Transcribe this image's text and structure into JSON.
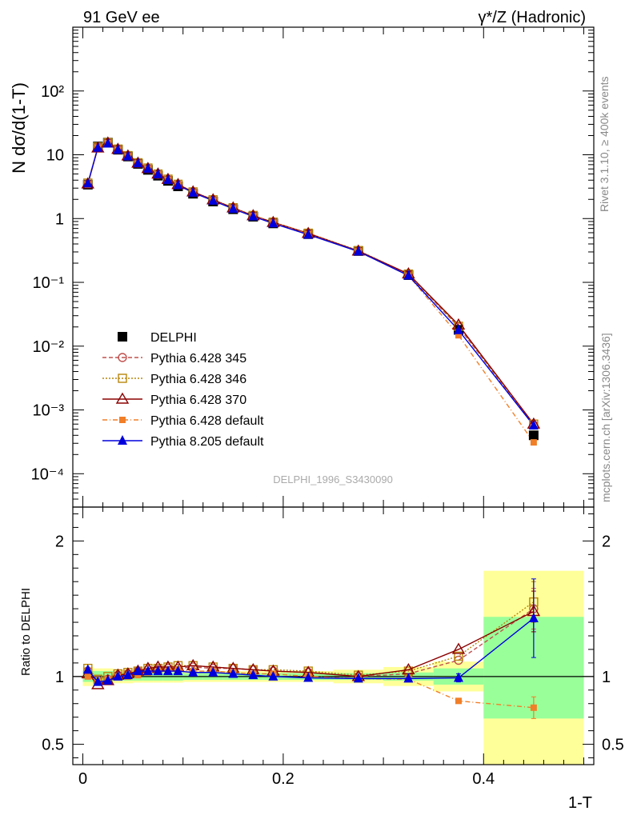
{
  "header": {
    "left_label": "91 GeV ee",
    "right_label": "γ*/Z (Hadronic)"
  },
  "side_labels": {
    "rivet": "Rivet 3.1.10, ≥ 400k events",
    "mcplots": "mcplots.cern.ch [arXiv:1306.3436]"
  },
  "analysis_label": "DELPHI_1996_S3430090",
  "chart_data": [
    {
      "type": "line",
      "panel": "main",
      "ylabel": "N dσ/d(1-T)",
      "xlabel": "1-T",
      "yscale": "log",
      "xlim": [
        -0.01,
        0.51
      ],
      "ylim": [
        3e-05,
        1000
      ],
      "y_tick_labels": [
        "10⁻⁴",
        "10⁻³",
        "10⁻²",
        "10⁻¹",
        "1",
        "10",
        "10²"
      ],
      "y_tick_values": [
        0.0001,
        0.001,
        0.01,
        0.1,
        1,
        10,
        100
      ],
      "x": [
        0.005,
        0.015,
        0.025,
        0.035,
        0.045,
        0.055,
        0.065,
        0.075,
        0.085,
        0.095,
        0.11,
        0.13,
        0.15,
        0.17,
        0.19,
        0.225,
        0.275,
        0.325,
        0.375,
        0.45
      ],
      "series": [
        {
          "name": "DELPHI",
          "marker": "square-filled",
          "color": "#000000",
          "dash": "",
          "values": [
            3.4,
            13.5,
            15.5,
            12.0,
            9.4,
            7.2,
            5.8,
            4.7,
            3.9,
            3.2,
            2.45,
            1.85,
            1.4,
            1.07,
            0.84,
            0.57,
            0.31,
            0.13,
            0.018,
            0.0004
          ]
        },
        {
          "name": "Pythia 6.428 345",
          "marker": "circle-open",
          "color": "#c0504d",
          "dash": "5,3",
          "values": [
            3.5,
            13.2,
            15.4,
            12.2,
            9.6,
            7.4,
            6.1,
            4.95,
            4.1,
            3.4,
            2.6,
            1.95,
            1.47,
            1.11,
            0.87,
            0.585,
            0.31,
            0.133,
            0.02,
            0.00058
          ]
        },
        {
          "name": "Pythia 6.428 346",
          "marker": "square-open",
          "color": "#b8860b",
          "dash": "2,2",
          "values": [
            3.6,
            13.3,
            15.5,
            12.3,
            9.7,
            7.5,
            6.2,
            5.0,
            4.15,
            3.45,
            2.62,
            1.97,
            1.48,
            1.12,
            0.88,
            0.59,
            0.315,
            0.135,
            0.0205,
            0.0006
          ]
        },
        {
          "name": "Pythia 6.428 370",
          "marker": "triangle-open",
          "color": "#8b0000",
          "dash": "",
          "values": [
            3.5,
            12.8,
            15.3,
            12.2,
            9.6,
            7.4,
            6.1,
            5.0,
            4.12,
            3.42,
            2.62,
            1.97,
            1.47,
            1.11,
            0.87,
            0.585,
            0.31,
            0.136,
            0.0215,
            0.0006
          ]
        },
        {
          "name": "Pythia 6.428 default",
          "marker": "square-filled-small",
          "color": "#f07f28",
          "dash": "6,3,1,3",
          "values": [
            3.4,
            13.0,
            15.2,
            12.0,
            9.4,
            7.3,
            6.0,
            4.9,
            4.05,
            3.35,
            2.55,
            1.92,
            1.44,
            1.09,
            0.86,
            0.57,
            0.305,
            0.128,
            0.0148,
            0.00031
          ]
        },
        {
          "name": "Pythia 8.205 default",
          "marker": "triangle-filled",
          "color": "#0000dd",
          "dash": "",
          "values": [
            3.55,
            12.9,
            15.0,
            12.0,
            9.45,
            7.35,
            6.05,
            4.95,
            4.05,
            3.35,
            2.55,
            1.91,
            1.42,
            1.08,
            0.84,
            0.56,
            0.305,
            0.128,
            0.0178,
            0.00057
          ]
        }
      ]
    },
    {
      "type": "line",
      "panel": "ratio",
      "ylabel": "Ratio to DELPHI",
      "xlabel": "1-T",
      "ylim": [
        0.35,
        2.25
      ],
      "y_tick_labels": [
        "0.5",
        "1",
        "2"
      ],
      "y_tick_values": [
        0.5,
        1,
        2
      ],
      "x_tick_labels": [
        "0",
        "0.2",
        "0.4"
      ],
      "x_tick_values": [
        0,
        0.2,
        0.4
      ],
      "x": [
        0.005,
        0.015,
        0.025,
        0.035,
        0.045,
        0.055,
        0.065,
        0.075,
        0.085,
        0.095,
        0.11,
        0.13,
        0.15,
        0.17,
        0.19,
        0.225,
        0.275,
        0.325,
        0.375,
        0.45
      ],
      "bands": {
        "edges": [
          0.0,
          0.01,
          0.02,
          0.03,
          0.04,
          0.05,
          0.06,
          0.07,
          0.08,
          0.09,
          0.1,
          0.12,
          0.14,
          0.16,
          0.18,
          0.2,
          0.25,
          0.3,
          0.35,
          0.4,
          0.5
        ],
        "green": [
          [
            0.96,
            1.04
          ],
          [
            0.96,
            1.04
          ],
          [
            0.96,
            1.04
          ],
          [
            0.97,
            1.03
          ],
          [
            0.97,
            1.03
          ],
          [
            0.97,
            1.03
          ],
          [
            0.97,
            1.03
          ],
          [
            0.97,
            1.03
          ],
          [
            0.97,
            1.03
          ],
          [
            0.97,
            1.03
          ],
          [
            0.975,
            1.025
          ],
          [
            0.975,
            1.025
          ],
          [
            0.975,
            1.025
          ],
          [
            0.975,
            1.025
          ],
          [
            0.975,
            1.025
          ],
          [
            0.975,
            1.025
          ],
          [
            0.975,
            1.025
          ],
          [
            0.97,
            1.03
          ],
          [
            0.94,
            1.06
          ],
          [
            0.69,
            1.44
          ]
        ],
        "yellow": [
          [
            0.93,
            1.07
          ],
          [
            0.94,
            1.06
          ],
          [
            0.94,
            1.06
          ],
          [
            0.95,
            1.05
          ],
          [
            0.95,
            1.05
          ],
          [
            0.955,
            1.045
          ],
          [
            0.955,
            1.045
          ],
          [
            0.955,
            1.045
          ],
          [
            0.955,
            1.045
          ],
          [
            0.955,
            1.045
          ],
          [
            0.96,
            1.04
          ],
          [
            0.96,
            1.04
          ],
          [
            0.96,
            1.04
          ],
          [
            0.96,
            1.04
          ],
          [
            0.96,
            1.04
          ],
          [
            0.96,
            1.04
          ],
          [
            0.95,
            1.05
          ],
          [
            0.93,
            1.07
          ],
          [
            0.89,
            1.11
          ],
          [
            0.35,
            1.78
          ]
        ]
      },
      "series": [
        {
          "name": "Pythia 6.428 345",
          "marker": "circle-open",
          "color": "#c0504d",
          "dash": "5,3",
          "values": [
            1.04,
            0.97,
            0.98,
            1.01,
            1.02,
            1.04,
            1.05,
            1.05,
            1.06,
            1.06,
            1.07,
            1.06,
            1.06,
            1.05,
            1.04,
            1.03,
            1.0,
            1.02,
            1.12,
            1.5
          ],
          "err": [
            0,
            0,
            0,
            0,
            0,
            0,
            0,
            0,
            0,
            0,
            0,
            0,
            0,
            0,
            0,
            0,
            0,
            0,
            0,
            0.15
          ]
        },
        {
          "name": "Pythia 6.428 346",
          "marker": "square-open",
          "color": "#b8860b",
          "dash": "2,2",
          "values": [
            1.06,
            0.98,
            1.0,
            1.02,
            1.03,
            1.04,
            1.06,
            1.06,
            1.07,
            1.08,
            1.08,
            1.07,
            1.06,
            1.05,
            1.05,
            1.04,
            1.01,
            1.04,
            1.15,
            1.55
          ],
          "err": [
            0,
            0,
            0,
            0,
            0,
            0,
            0,
            0,
            0,
            0,
            0,
            0,
            0,
            0,
            0,
            0,
            0,
            0,
            0,
            0.15
          ]
        },
        {
          "name": "Pythia 6.428 370",
          "marker": "triangle-open",
          "color": "#8b0000",
          "dash": "",
          "values": [
            1.02,
            0.94,
            0.97,
            1.01,
            1.02,
            1.04,
            1.06,
            1.07,
            1.07,
            1.07,
            1.08,
            1.07,
            1.06,
            1.05,
            1.04,
            1.03,
            1.0,
            1.05,
            1.2,
            1.48
          ],
          "err": [
            0,
            0,
            0,
            0,
            0,
            0,
            0,
            0,
            0,
            0,
            0,
            0,
            0,
            0,
            0,
            0,
            0,
            0,
            0,
            0.15
          ]
        },
        {
          "name": "Pythia 6.428 default",
          "marker": "square-filled-small",
          "color": "#f07f28",
          "dash": "6,3,1,3",
          "values": [
            1.0,
            0.96,
            0.98,
            1.0,
            1.0,
            1.01,
            1.03,
            1.04,
            1.04,
            1.05,
            1.04,
            1.04,
            1.03,
            1.02,
            1.02,
            1.0,
            0.985,
            0.98,
            0.82,
            0.77
          ],
          "err": [
            0,
            0,
            0,
            0,
            0,
            0,
            0,
            0,
            0,
            0,
            0,
            0,
            0,
            0,
            0,
            0,
            0,
            0,
            0,
            0.08
          ]
        },
        {
          "name": "Pythia 8.205 default",
          "marker": "triangle-filled",
          "color": "#0000dd",
          "dash": "",
          "values": [
            1.05,
            0.96,
            0.97,
            1.0,
            1.01,
            1.04,
            1.04,
            1.04,
            1.04,
            1.04,
            1.03,
            1.03,
            1.02,
            1.01,
            1.0,
            0.99,
            0.985,
            0.985,
            0.99,
            1.43
          ],
          "err": [
            0,
            0,
            0,
            0,
            0,
            0,
            0,
            0,
            0,
            0,
            0,
            0,
            0,
            0,
            0,
            0,
            0,
            0,
            0.03,
            0.29
          ]
        }
      ]
    }
  ]
}
